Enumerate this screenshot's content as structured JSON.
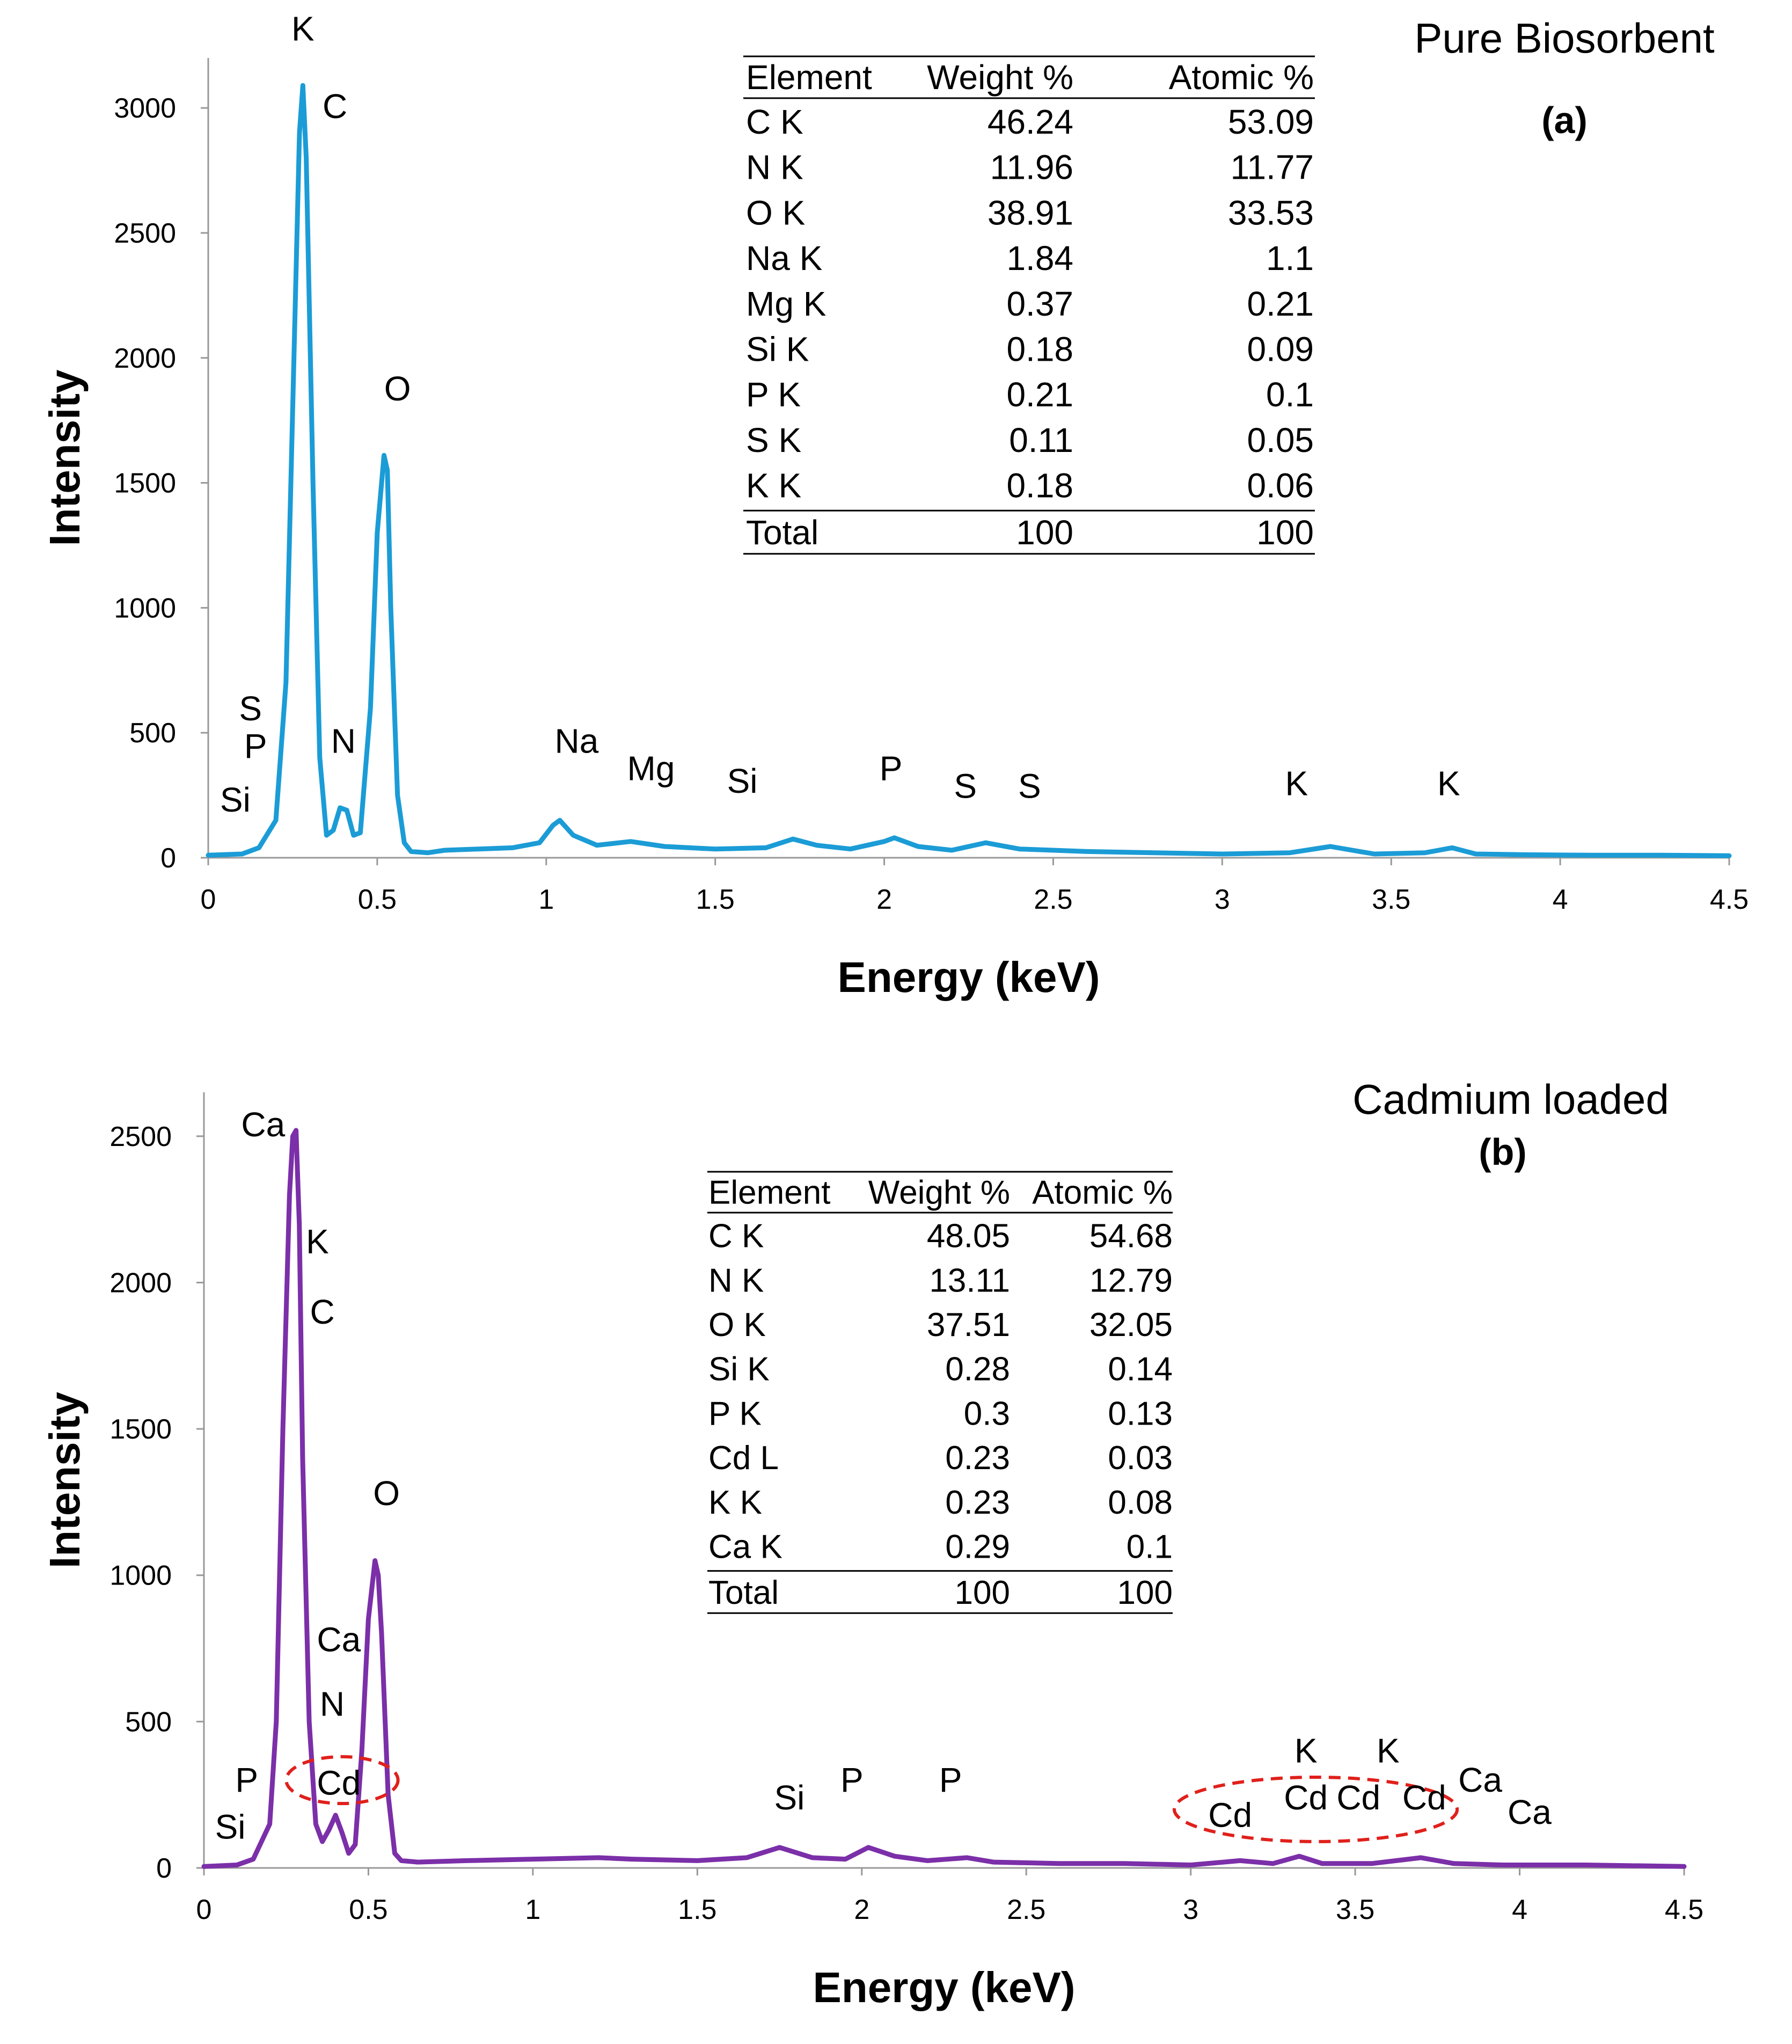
{
  "chart_data": [
    {
      "type": "line",
      "title": "Pure Biosorbent",
      "panel_label": "(a)",
      "xlabel": "Energy (keV)",
      "ylabel": "Intensity",
      "xlim": [
        0,
        4.5
      ],
      "ylim": [
        0,
        3200
      ],
      "xticks": [
        "0",
        "0.5",
        "1",
        "1.5",
        "2",
        "2.5",
        "3",
        "3.5",
        "4",
        "4.5"
      ],
      "yticks": [
        "0",
        "500",
        "1000",
        "1500",
        "2000",
        "2500",
        "3000"
      ],
      "grid": false,
      "color": "#1b9cd6",
      "series": [
        {
          "x": [
            0,
            0.1,
            0.15,
            0.2,
            0.23,
            0.25,
            0.27,
            0.28,
            0.29,
            0.31,
            0.33,
            0.35,
            0.37,
            0.39,
            0.41,
            0.43,
            0.45,
            0.48,
            0.5,
            0.52,
            0.53,
            0.54,
            0.56,
            0.58,
            0.6,
            0.65,
            0.7,
            0.8,
            0.9,
            0.98,
            1.02,
            1.04,
            1.08,
            1.15,
            1.25,
            1.35,
            1.5,
            1.65,
            1.73,
            1.8,
            1.9,
            2.0,
            2.03,
            2.1,
            2.2,
            2.3,
            2.4,
            2.6,
            2.8,
            3.0,
            3.2,
            3.32,
            3.45,
            3.6,
            3.68,
            3.75,
            3.9,
            4.1,
            4.3,
            4.5
          ],
          "y": [
            10,
            15,
            40,
            150,
            700,
            1800,
            2900,
            3090,
            2800,
            1500,
            400,
            90,
            110,
            200,
            190,
            90,
            100,
            600,
            1300,
            1610,
            1550,
            1000,
            250,
            60,
            25,
            20,
            30,
            35,
            40,
            60,
            130,
            150,
            90,
            50,
            65,
            45,
            35,
            40,
            75,
            50,
            35,
            65,
            80,
            45,
            30,
            60,
            35,
            25,
            20,
            15,
            20,
            45,
            15,
            20,
            40,
            15,
            12,
            10,
            10,
            8
          ]
        }
      ],
      "peak_labels": [
        {
          "text": "K",
          "x": 0.28,
          "y": 3270
        },
        {
          "text": "C",
          "x": 0.375,
          "y": 2960
        },
        {
          "text": "O",
          "x": 0.56,
          "y": 1830
        },
        {
          "text": "S",
          "x": 0.125,
          "y": 550
        },
        {
          "text": "P",
          "x": 0.14,
          "y": 400
        },
        {
          "text": "Si",
          "x": 0.08,
          "y": 185
        },
        {
          "text": "N",
          "x": 0.4,
          "y": 420
        },
        {
          "text": "Na",
          "x": 1.09,
          "y": 420
        },
        {
          "text": "Mg",
          "x": 1.31,
          "y": 310
        },
        {
          "text": "Si",
          "x": 1.58,
          "y": 260
        },
        {
          "text": "P",
          "x": 2.02,
          "y": 310
        },
        {
          "text": "S",
          "x": 2.24,
          "y": 240
        },
        {
          "text": "S",
          "x": 2.43,
          "y": 240
        },
        {
          "text": "K",
          "x": 3.22,
          "y": 250
        },
        {
          "text": "K",
          "x": 3.67,
          "y": 250
        }
      ],
      "table": {
        "headers": [
          "Element",
          "Weight %",
          "Atomic %"
        ],
        "rows": [
          [
            "C  K",
            "46.24",
            "53.09"
          ],
          [
            "N  K",
            "11.96",
            "11.77"
          ],
          [
            "O  K",
            "38.91",
            "33.53"
          ],
          [
            "Na K",
            "1.84",
            "1.1"
          ],
          [
            "Mg K",
            "0.37",
            "0.21"
          ],
          [
            "Si K",
            "0.18",
            "0.09"
          ],
          [
            "P  K",
            "0.21",
            "0.1"
          ],
          [
            "S  K",
            "0.11",
            "0.05"
          ],
          [
            "K  K",
            "0.18",
            "0.06"
          ]
        ],
        "total": [
          "Total",
          "100",
          "100"
        ]
      }
    },
    {
      "type": "line",
      "title": "Cadmium loaded",
      "panel_label": "(b)",
      "xlabel": "Energy (keV)",
      "ylabel": "Intensity",
      "xlim": [
        0,
        4.5
      ],
      "ylim": [
        0,
        2650
      ],
      "xticks": [
        "0",
        "0.5",
        "1",
        "1.5",
        "2",
        "2.5",
        "3",
        "3.5",
        "4",
        "4.5"
      ],
      "yticks": [
        "0",
        "500",
        "1000",
        "1500",
        "2000",
        "2500"
      ],
      "grid": false,
      "color": "#7b2fa8",
      "series": [
        {
          "x": [
            0,
            0.1,
            0.15,
            0.2,
            0.22,
            0.24,
            0.26,
            0.27,
            0.28,
            0.29,
            0.3,
            0.32,
            0.34,
            0.36,
            0.38,
            0.4,
            0.42,
            0.44,
            0.46,
            0.48,
            0.5,
            0.52,
            0.53,
            0.54,
            0.56,
            0.58,
            0.6,
            0.65,
            0.8,
            1.0,
            1.2,
            1.3,
            1.5,
            1.65,
            1.75,
            1.85,
            1.95,
            2.02,
            2.1,
            2.2,
            2.32,
            2.4,
            2.6,
            2.8,
            3.0,
            3.15,
            3.25,
            3.33,
            3.4,
            3.55,
            3.7,
            3.8,
            3.95,
            4.2,
            4.5
          ],
          "y": [
            5,
            10,
            30,
            150,
            500,
            1500,
            2300,
            2500,
            2520,
            2200,
            1400,
            500,
            150,
            90,
            130,
            180,
            120,
            50,
            80,
            400,
            850,
            1050,
            1000,
            800,
            250,
            50,
            25,
            20,
            25,
            30,
            35,
            30,
            25,
            35,
            70,
            35,
            30,
            70,
            40,
            25,
            35,
            20,
            15,
            15,
            10,
            25,
            15,
            40,
            15,
            15,
            35,
            15,
            10,
            10,
            5
          ]
        }
      ],
      "peak_labels": [
        {
          "text": "Ca",
          "x": 0.18,
          "y": 2500
        },
        {
          "text": "K",
          "x": 0.345,
          "y": 2100
        },
        {
          "text": "C",
          "x": 0.36,
          "y": 1860
        },
        {
          "text": "O",
          "x": 0.555,
          "y": 1240
        },
        {
          "text": "Ca",
          "x": 0.41,
          "y": 740
        },
        {
          "text": "N",
          "x": 0.39,
          "y": 520
        },
        {
          "text": "Cd",
          "x": 0.41,
          "y": 250
        },
        {
          "text": "P",
          "x": 0.13,
          "y": 260
        },
        {
          "text": "Si",
          "x": 0.08,
          "y": 100
        },
        {
          "text": "Si",
          "x": 1.78,
          "y": 200
        },
        {
          "text": "P",
          "x": 1.97,
          "y": 260
        },
        {
          "text": "P",
          "x": 2.27,
          "y": 260
        },
        {
          "text": "Cd",
          "x": 3.12,
          "y": 140
        },
        {
          "text": "Cd",
          "x": 3.35,
          "y": 200
        },
        {
          "text": "Cd",
          "x": 3.51,
          "y": 200
        },
        {
          "text": "Cd",
          "x": 3.71,
          "y": 200
        },
        {
          "text": "K",
          "x": 3.35,
          "y": 360
        },
        {
          "text": "K",
          "x": 3.6,
          "y": 360
        },
        {
          "text": "Ca",
          "x": 3.88,
          "y": 260
        },
        {
          "text": "Ca",
          "x": 4.03,
          "y": 150
        }
      ],
      "highlight_ellipses": [
        {
          "cx": 0.42,
          "cy": 300,
          "rx": 0.17,
          "ry": 80
        },
        {
          "cx": 3.38,
          "cy": 200,
          "rx": 0.43,
          "ry": 110
        }
      ],
      "highlight_color": "#e0201b",
      "table": {
        "headers": [
          "Element",
          "Weight %",
          "Atomic %"
        ],
        "rows": [
          [
            "C  K",
            "48.05",
            "54.68"
          ],
          [
            "N  K",
            "13.11",
            "12.79"
          ],
          [
            "O  K",
            "37.51",
            "32.05"
          ],
          [
            "Si K",
            "0.28",
            "0.14"
          ],
          [
            "P  K",
            "0.3",
            "0.13"
          ],
          [
            "Cd L",
            "0.23",
            "0.03"
          ],
          [
            "K  K",
            "0.23",
            "0.08"
          ],
          [
            "Ca K",
            "0.29",
            "0.1"
          ]
        ],
        "total": [
          "Total",
          "100",
          "100"
        ]
      }
    }
  ]
}
